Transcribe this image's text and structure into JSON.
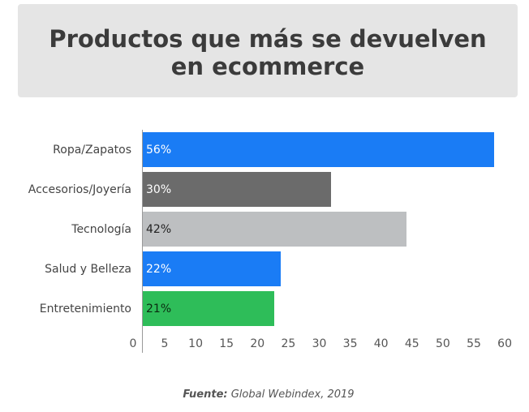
{
  "chart_data": {
    "type": "bar",
    "orientation": "horizontal",
    "title": "Productos que más se devuelven en ecommerce",
    "title_lines": [
      "Productos que más se devuelven",
      "en ecommerce"
    ],
    "categories": [
      "Ropa/Zapatos",
      "Accesorios/Joyería",
      "Tecnología",
      "Salud y Belleza",
      "Entretenimiento"
    ],
    "values": [
      56,
      30,
      42,
      22,
      21
    ],
    "labels": [
      "56%",
      "30%",
      "42%",
      "22%",
      "21%"
    ],
    "colors": [
      "#1a7cf5",
      "#6b6b6b",
      "#bdbfc1",
      "#1a7cf5",
      "#2ebd59"
    ],
    "label_colors": [
      "#ffffff",
      "#ffffff",
      "#222222",
      "#ffffff",
      "#0a2a10"
    ],
    "xticks": [
      "0",
      "5",
      "10",
      "15",
      "20",
      "25",
      "30",
      "35",
      "40",
      "45",
      "50",
      "55",
      "60"
    ],
    "xlim": [
      0,
      60
    ],
    "grid": false
  },
  "source": {
    "label": "Fuente:",
    "text": "Global Webindex, 2019"
  }
}
